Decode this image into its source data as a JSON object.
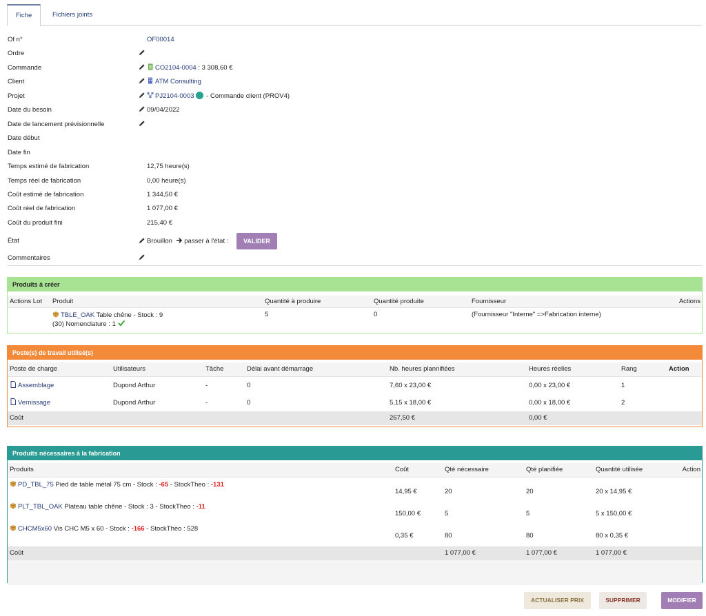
{
  "tabs": [
    {
      "label": "Fiche",
      "active": true
    },
    {
      "label": "Fichiers joints",
      "active": false
    }
  ],
  "fiche": {
    "of_label": "Of n°",
    "of_value": "OF00014",
    "ordre_label": "Ordre",
    "commande_label": "Commande",
    "commande_ref": "CO2104-0004",
    "commande_amount": " : 3 308,60 €",
    "client_label": "Client",
    "client_value": "ATM Consulting",
    "projet_label": "Projet",
    "projet_ref": "PJ2104-0003",
    "projet_desc": " - Commande client (PROV4)",
    "date_besoin_label": "Date du besoin",
    "date_besoin_value": "09/04/2022",
    "date_lancement_label": "Date de lancement prévisionnelle",
    "date_debut_label": "Date début",
    "date_fin_label": "Date fin",
    "temps_estime_label": "Temps estimé de fabrication",
    "temps_estime_value": "12,75 heure(s)",
    "temps_reel_label": "Temps réel de fabrication",
    "temps_reel_value": "0,00 heure(s)",
    "cout_estime_label": "Coût estimé de fabrication",
    "cout_estime_value": "1 344,50 €",
    "cout_reel_label": "Coût réel de fabrication",
    "cout_reel_value": "1 077,00 €",
    "cout_produit_label": "Coût du produit fini",
    "cout_produit_value": "215,40 €",
    "etat_label": "État",
    "etat_value": "Brouillon",
    "etat_next": " passer à l'état :",
    "valider_label": "VALIDER",
    "commentaires_label": "Commentaires"
  },
  "produits_creer": {
    "title": "Produits à créer",
    "headers": [
      "Actions Lot",
      "Produit",
      "Quantité à produire",
      "Quantité produite",
      "Fournisseur",
      "Actions"
    ],
    "row": {
      "ref": "TBLE_OAK",
      "desc": " Table chêne - Stock : 9",
      "nomenclature": "(30) Nomenclature : 1",
      "qte_produire": "5",
      "qte_produite": "0",
      "fournisseur": "(Fournisseur \"Interne\" =>Fabrication interne)"
    }
  },
  "postes": {
    "title": "Poste(s) de travail utilisé(s)",
    "headers": [
      "Poste de charge",
      "Utilisateurs",
      "Tâche",
      "Délai avant démarrage",
      "Nb. heures plannifiées",
      "Heures réelles",
      "Rang",
      "Action"
    ],
    "rows": [
      {
        "poste": "Assemblage",
        "user": "Dupond Arthur",
        "tache": "-",
        "delai": "0",
        "heures_plan": "7,60 x 23,00 €",
        "heures_reelles": "0,00 x 23,00 €",
        "rang": "1"
      },
      {
        "poste": "Vernissage",
        "user": "Dupond Arthur",
        "tache": "-",
        "delai": "0",
        "heures_plan": "5,15 x 18,00 €",
        "heures_reelles": "0,00 x 18,00 €",
        "rang": "2"
      }
    ],
    "total_label": "Coût",
    "total_plan": "267,50 €",
    "total_reel": "0,00 €"
  },
  "produits_necessaires": {
    "title": "Produits nécessaires à la fabrication",
    "headers": [
      "Produits",
      "Coût",
      "Qté nécessaire",
      "Qté planifiée",
      "Quantité utilisée",
      "Action"
    ],
    "rows": [
      {
        "ref": "PD_TBL_75",
        "desc": " Pied de table métal 75 cm - Stock : ",
        "stock": "-65",
        "sep": " - StockTheo : ",
        "theo": "-131",
        "stock_neg": true,
        "theo_neg": true,
        "cout": "14,95 €",
        "qte_nec": "20",
        "qte_plan": "20",
        "qte_util": "20 x 14,95 €"
      },
      {
        "ref": "PLT_TBL_OAK",
        "desc": " Plateau table chêne - Stock : ",
        "stock": "3",
        "sep": " - StockTheo : ",
        "theo": "-11",
        "stock_neg": false,
        "theo_neg": true,
        "cout": "150,00 €",
        "qte_nec": "5",
        "qte_plan": "5",
        "qte_util": "5 x 150,00 €"
      },
      {
        "ref": "CHCM5x60",
        "desc": " Vis CHC M5 x 60 - Stock : ",
        "stock": "-166",
        "sep": " - StockTheo : ",
        "theo": "528",
        "stock_neg": true,
        "theo_neg": false,
        "cout": "0,35 €",
        "qte_nec": "80",
        "qte_plan": "80",
        "qte_util": "80 x 0,35 €"
      }
    ],
    "total_label": "Coût",
    "total_nec": "1 077,00 €",
    "total_plan": "1 077,00 €",
    "total_util": "1 077,00 €"
  },
  "buttons": {
    "actualiser": "ACTUALISER PRIX",
    "supprimer": "SUPPRIMER",
    "modifier": "MODIFIER"
  },
  "icons": [
    "pencil-icon",
    "order-icon",
    "company-icon",
    "project-icon",
    "status-dot-icon",
    "arrow-right-icon",
    "product-icon",
    "check-icon",
    "document-icon"
  ],
  "colors": {
    "link": "#263c7a",
    "green_panel": "#a8e393",
    "orange_panel": "#f28a3a",
    "teal_panel": "#2a9a94",
    "valider_btn": "#a17fb5",
    "negative": "#dd2222"
  }
}
